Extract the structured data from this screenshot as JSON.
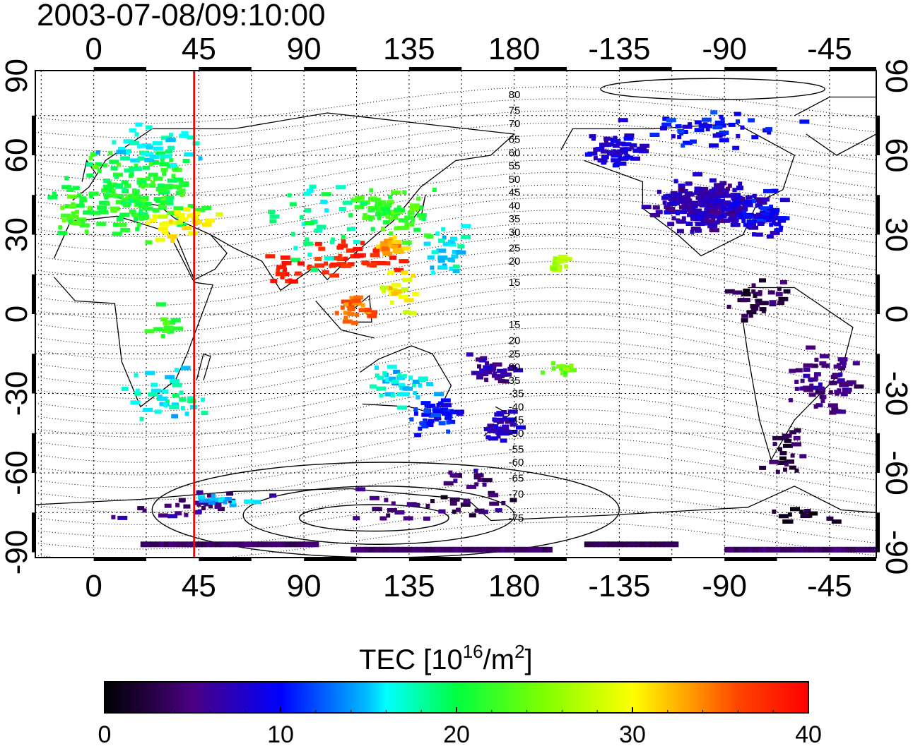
{
  "title": "2003-07-08/09:10:00",
  "map": {
    "x_ticks_bottom": [
      {
        "lon": 0,
        "label": "0"
      },
      {
        "lon": 45,
        "label": "45"
      },
      {
        "lon": 90,
        "label": "90"
      },
      {
        "lon": 135,
        "label": "135"
      },
      {
        "lon": 180,
        "label": "180"
      },
      {
        "lon": 225,
        "label": "-135"
      },
      {
        "lon": 270,
        "label": "-90"
      },
      {
        "lon": 315,
        "label": "-45"
      }
    ],
    "x_ticks_top": [
      {
        "lon": 0,
        "label": "0"
      },
      {
        "lon": 45,
        "label": "45"
      },
      {
        "lon": 90,
        "label": "90"
      },
      {
        "lon": 135,
        "label": "135"
      },
      {
        "lon": 180,
        "label": "180"
      },
      {
        "lon": 225,
        "label": "-135"
      },
      {
        "lon": 270,
        "label": "-90"
      },
      {
        "lon": 315,
        "label": "-45"
      }
    ],
    "y_ticks": [
      {
        "lat": 90,
        "label": "90"
      },
      {
        "lat": 60,
        "label": "60"
      },
      {
        "lat": 30,
        "label": "30"
      },
      {
        "lat": 0,
        "label": "0"
      },
      {
        "lat": -30,
        "label": "-30"
      },
      {
        "lat": -60,
        "label": "-60"
      },
      {
        "lat": -90,
        "label": "-90"
      }
    ],
    "lon_range": [
      -25,
      335
    ],
    "lat_range": [
      -92,
      92
    ],
    "grid": true,
    "marker_meridian": {
      "lon": 43,
      "color": "#ff0000"
    },
    "contour_labels_north": [
      {
        "label": "80",
        "lat": 83
      },
      {
        "label": "75",
        "lat": 77
      },
      {
        "label": "70",
        "lat": 72
      },
      {
        "label": "65",
        "lat": 66
      },
      {
        "label": "60",
        "lat": 61
      },
      {
        "label": "55",
        "lat": 56
      },
      {
        "label": "50",
        "lat": 51
      },
      {
        "label": "45",
        "lat": 46
      },
      {
        "label": "40",
        "lat": 41
      },
      {
        "label": "35",
        "lat": 36
      },
      {
        "label": "30",
        "lat": 31
      },
      {
        "label": "25",
        "lat": 25
      },
      {
        "label": "20",
        "lat": 20
      },
      {
        "label": "15",
        "lat": 12
      }
    ],
    "contour_labels_south": [
      {
        "label": "15",
        "lat": -4
      },
      {
        "label": "20",
        "lat": -10
      },
      {
        "label": "25",
        "lat": -15
      },
      {
        "label": "30",
        "lat": -20
      },
      {
        "label": "35",
        "lat": -25
      },
      {
        "label": "-35",
        "lat": -30
      },
      {
        "label": "-40",
        "lat": -35
      },
      {
        "label": "-45",
        "lat": -40
      },
      {
        "label": "-50",
        "lat": -45
      },
      {
        "label": "-55",
        "lat": -51
      },
      {
        "label": "-60",
        "lat": -56
      },
      {
        "label": "-65",
        "lat": -62
      },
      {
        "label": "-70",
        "lat": -68
      },
      {
        "label": "-75",
        "lat": -77
      }
    ]
  },
  "tec_clusters": [
    {
      "lon": 15,
      "lat": 47,
      "dlon": 42,
      "dlat": 22,
      "n": 170,
      "tec": 21
    },
    {
      "lon": 20,
      "lat": 64,
      "dlon": 30,
      "dlat": 10,
      "n": 40,
      "tec": 16
    },
    {
      "lon": 35,
      "lat": 35,
      "dlon": 18,
      "dlat": 8,
      "n": 30,
      "tec": 30
    },
    {
      "lon": -10,
      "lat": 38,
      "dlon": 12,
      "dlat": 10,
      "n": 25,
      "tec": 22
    },
    {
      "lon": 110,
      "lat": 22,
      "dlon": 30,
      "dlat": 10,
      "n": 45,
      "tec": 38
    },
    {
      "lon": 128,
      "lat": 38,
      "dlon": 25,
      "dlat": 14,
      "n": 70,
      "tec": 22
    },
    {
      "lon": 125,
      "lat": 26,
      "dlon": 10,
      "dlat": 5,
      "n": 20,
      "tec": 32
    },
    {
      "lon": 95,
      "lat": 35,
      "dlon": 30,
      "dlat": 22,
      "n": 40,
      "tec": 18
    },
    {
      "lon": 150,
      "lat": 24,
      "dlon": 20,
      "dlat": 16,
      "n": 30,
      "tec": 16
    },
    {
      "lon": 110,
      "lat": 2,
      "dlon": 12,
      "dlat": 7,
      "n": 25,
      "tec": 35
    },
    {
      "lon": 130,
      "lat": 10,
      "dlon": 12,
      "dlat": 12,
      "n": 20,
      "tec": 30
    },
    {
      "lon": 80,
      "lat": 18,
      "dlon": 10,
      "dlat": 10,
      "n": 15,
      "tec": 39
    },
    {
      "lon": 30,
      "lat": -32,
      "dlon": 22,
      "dlat": 14,
      "n": 40,
      "tec": 17
    },
    {
      "lon": 28,
      "lat": -2,
      "dlon": 12,
      "dlat": 10,
      "n": 12,
      "tec": 22
    },
    {
      "lon": 130,
      "lat": -25,
      "dlon": 22,
      "dlat": 14,
      "n": 40,
      "tec": 16
    },
    {
      "lon": 145,
      "lat": -38,
      "dlon": 14,
      "dlat": 10,
      "n": 45,
      "tec": 10
    },
    {
      "lon": 172,
      "lat": -42,
      "dlon": 12,
      "dlat": 8,
      "n": 40,
      "tec": 8
    },
    {
      "lon": 170,
      "lat": -20,
      "dlon": 14,
      "dlat": 8,
      "n": 35,
      "tec": 6
    },
    {
      "lon": 198,
      "lat": 20,
      "dlon": 5,
      "dlat": 4,
      "n": 15,
      "tec": 27
    },
    {
      "lon": 200,
      "lat": -20,
      "dlon": 10,
      "dlat": 5,
      "n": 12,
      "tec": 24
    },
    {
      "lon": 262,
      "lat": 42,
      "dlon": 30,
      "dlat": 13,
      "n": 260,
      "tec": 7
    },
    {
      "lon": 285,
      "lat": 38,
      "dlon": 15,
      "dlat": 10,
      "n": 70,
      "tec": 9
    },
    {
      "lon": 220,
      "lat": 62,
      "dlon": 18,
      "dlat": 8,
      "n": 60,
      "tec": 8
    },
    {
      "lon": 260,
      "lat": 70,
      "dlon": 45,
      "dlat": 10,
      "n": 50,
      "tec": 10
    },
    {
      "lon": 282,
      "lat": 5,
      "dlon": 18,
      "dlat": 12,
      "n": 35,
      "tec": 3
    },
    {
      "lon": 310,
      "lat": -25,
      "dlon": 20,
      "dlat": 18,
      "n": 70,
      "tec": 5
    },
    {
      "lon": 295,
      "lat": -50,
      "dlon": 12,
      "dlat": 14,
      "n": 25,
      "tec": 3
    },
    {
      "lon": 40,
      "lat": -72,
      "dlon": 50,
      "dlat": 6,
      "n": 30,
      "tec": 5
    },
    {
      "lon": 140,
      "lat": -72,
      "dlon": 60,
      "dlat": 8,
      "n": 35,
      "tec": 4
    },
    {
      "lon": 160,
      "lat": -62,
      "dlon": 15,
      "dlat": 5,
      "n": 15,
      "tec": 5
    },
    {
      "lon": 300,
      "lat": -75,
      "dlon": 20,
      "dlat": 6,
      "n": 15,
      "tec": 2
    },
    {
      "lon": 60,
      "lat": -70,
      "dlon": 25,
      "dlat": 4,
      "n": 15,
      "tec": 15
    }
  ],
  "tec_bands": [
    {
      "lon_from": 20,
      "lon_to": 95,
      "lat": -87,
      "tec": 4
    },
    {
      "lon_from": 110,
      "lon_to": 195,
      "lat": -89,
      "tec": 4
    },
    {
      "lon_from": 210,
      "lon_to": 250,
      "lat": -87,
      "tec": 3
    },
    {
      "lon_from": 270,
      "lon_to": 335,
      "lat": -89,
      "tec": 4
    }
  ],
  "colorbar": {
    "title_main": "TEC  [10",
    "title_sup": "16",
    "title_unit": "/m",
    "title_sup2": "2",
    "title_end": "]",
    "min": 0,
    "max": 40,
    "ticks": [
      {
        "value": 0,
        "label": "0"
      },
      {
        "value": 10,
        "label": "10"
      },
      {
        "value": 20,
        "label": "20"
      },
      {
        "value": 30,
        "label": "30"
      },
      {
        "value": 40,
        "label": "40"
      }
    ],
    "stops": [
      {
        "value": 0,
        "color": "#000000"
      },
      {
        "value": 5,
        "color": "#4b0082"
      },
      {
        "value": 10,
        "color": "#0000ff"
      },
      {
        "value": 15,
        "color": "#00bfff"
      },
      {
        "value": 16,
        "color": "#00ffff"
      },
      {
        "value": 20,
        "color": "#00ff40"
      },
      {
        "value": 25,
        "color": "#80ff00"
      },
      {
        "value": 30,
        "color": "#ffff00"
      },
      {
        "value": 33,
        "color": "#ffa500"
      },
      {
        "value": 36,
        "color": "#ff4500"
      },
      {
        "value": 40,
        "color": "#ff0000"
      }
    ]
  }
}
